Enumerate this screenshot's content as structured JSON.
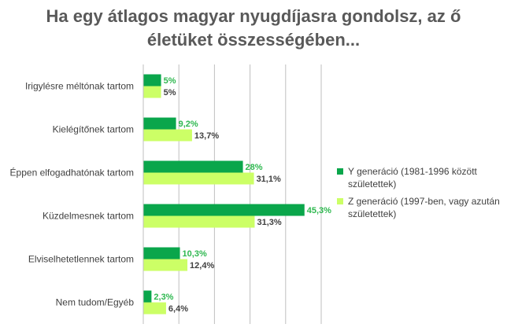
{
  "chart_data": {
    "type": "bar",
    "orientation": "horizontal",
    "title_lines": [
      "Ha egy átlagos magyar nyugdíjasra gondolsz, az ő",
      "életüket összességében..."
    ],
    "categories": [
      "Irigylésre méltónak tartom",
      "Kielégítőnek tartom",
      "Éppen elfogadhatónak tartom",
      "Küzdelmesnek tartom",
      "Elviselhetetlennek tartom",
      "Nem tudom/Egyéb"
    ],
    "series": [
      {
        "name": "Y generáció (1981-1996 között születettek)",
        "name_lines": [
          "Y generáció (1981-1996 között",
          "születettek)"
        ],
        "color": "#0aa64b",
        "values": [
          5,
          9.2,
          28,
          45.3,
          10.3,
          2.3
        ],
        "labels": [
          "5%",
          "9,2%",
          "28%",
          "45,3%",
          "10,3%",
          "2,3%"
        ]
      },
      {
        "name": "Z generáció (1997-ben, vagy azután születettek)",
        "name_lines": [
          "Z generáció (1997-ben, vagy azután",
          "születettek)"
        ],
        "color": "#ccff66",
        "values": [
          5,
          13.7,
          31.1,
          31.3,
          12.4,
          6.4
        ],
        "labels": [
          "5%",
          "13,7%",
          "31,1%",
          "31,3%",
          "12,4%",
          "6,4%"
        ]
      }
    ],
    "xlim": [
      0,
      50
    ],
    "grid": true,
    "legend_position": "right"
  }
}
